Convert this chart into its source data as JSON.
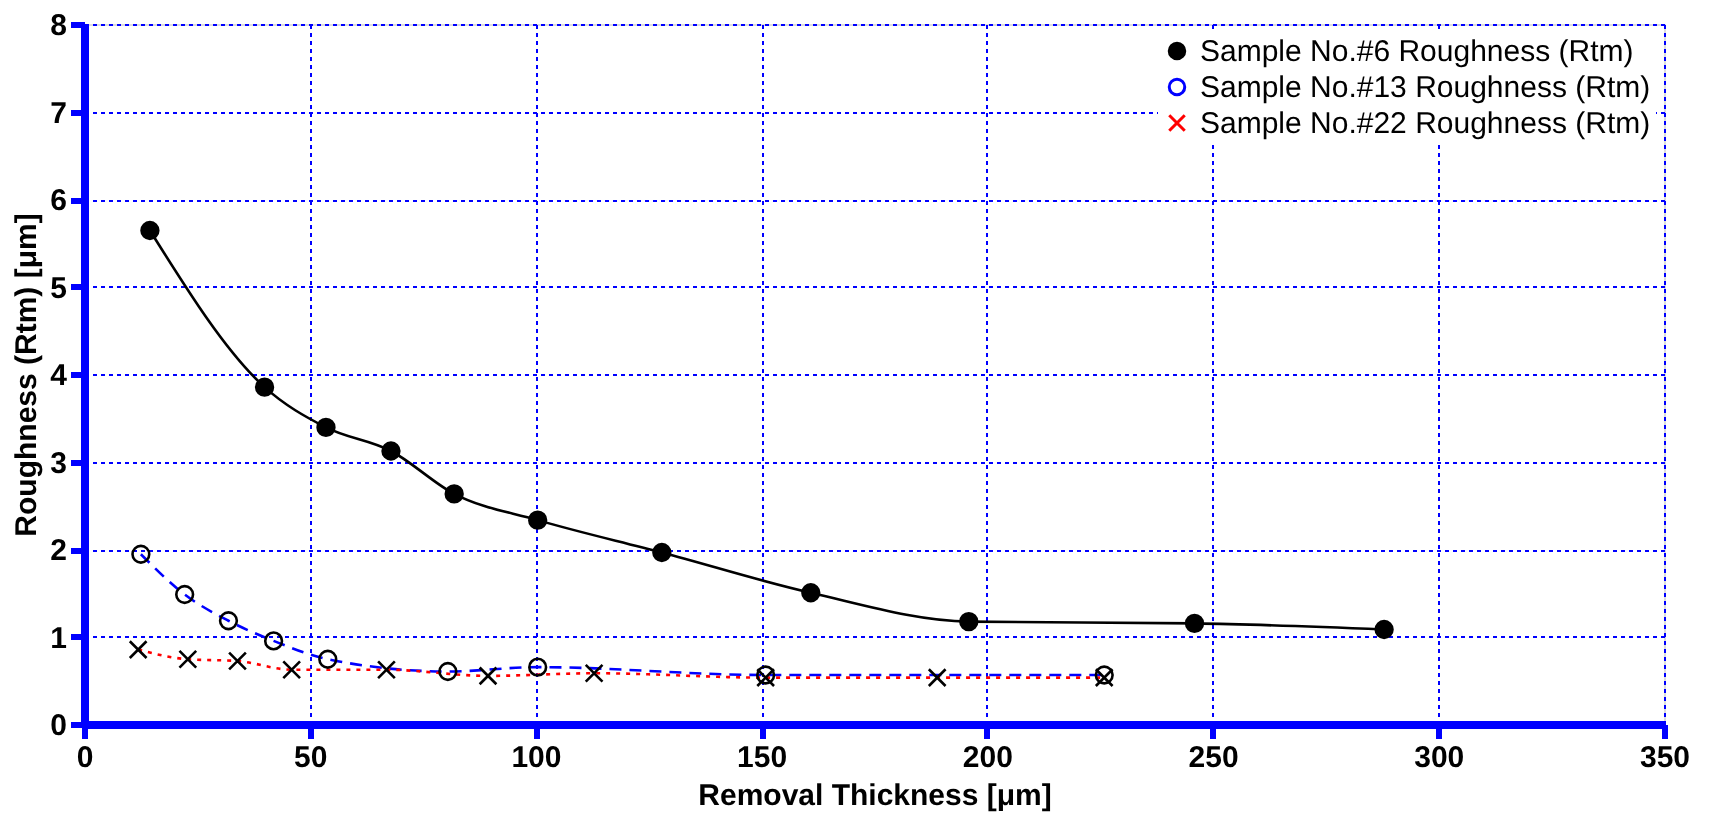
{
  "chart_data": {
    "type": "line",
    "xlabel": "Removal  Thickness  [μm]",
    "ylabel": "Roughness  (Rtm)  [μm]",
    "xlim": [
      0,
      350
    ],
    "xticks": [
      0,
      50,
      100,
      150,
      200,
      250,
      300,
      350
    ],
    "ylim": [
      0,
      8
    ],
    "yticks": [
      0,
      1,
      2,
      3,
      4,
      5,
      6,
      7,
      8
    ],
    "grid": true,
    "legend": "top right",
    "series": [
      {
        "name": "Sample No.#6   Roughness (Rtm)",
        "color": "#000000",
        "marker": "circle",
        "line_style": "solid",
        "x": [
          14.6,
          40,
          53.6,
          68,
          82,
          100.5,
          128,
          161,
          196,
          246,
          288
        ],
        "values": [
          5.64,
          3.85,
          3.39,
          3.12,
          2.63,
          2.33,
          1.96,
          1.5,
          1.17,
          1.15,
          1.08
        ]
      },
      {
        "name": "Sample No.#13 Roughness (Rtm)",
        "color": "#0000ff",
        "marker": "circle_open",
        "line_style": "dashed",
        "x": [
          12.6,
          22.3,
          32,
          42,
          54,
          80.6,
          100.5,
          151,
          226
        ],
        "values": [
          1.94,
          1.48,
          1.18,
          0.95,
          0.74,
          0.6,
          0.65,
          0.56,
          0.56
        ]
      },
      {
        "name": "Sample No.#22 Roughness (Rtm)",
        "color": "#ff0000",
        "marker": "cross",
        "line_style": "dotted",
        "x": [
          12,
          23,
          34,
          46,
          67,
          89.5,
          113,
          151,
          189,
          226
        ],
        "values": [
          0.85,
          0.74,
          0.72,
          0.62,
          0.62,
          0.55,
          0.58,
          0.53,
          0.53,
          0.53
        ]
      }
    ]
  }
}
